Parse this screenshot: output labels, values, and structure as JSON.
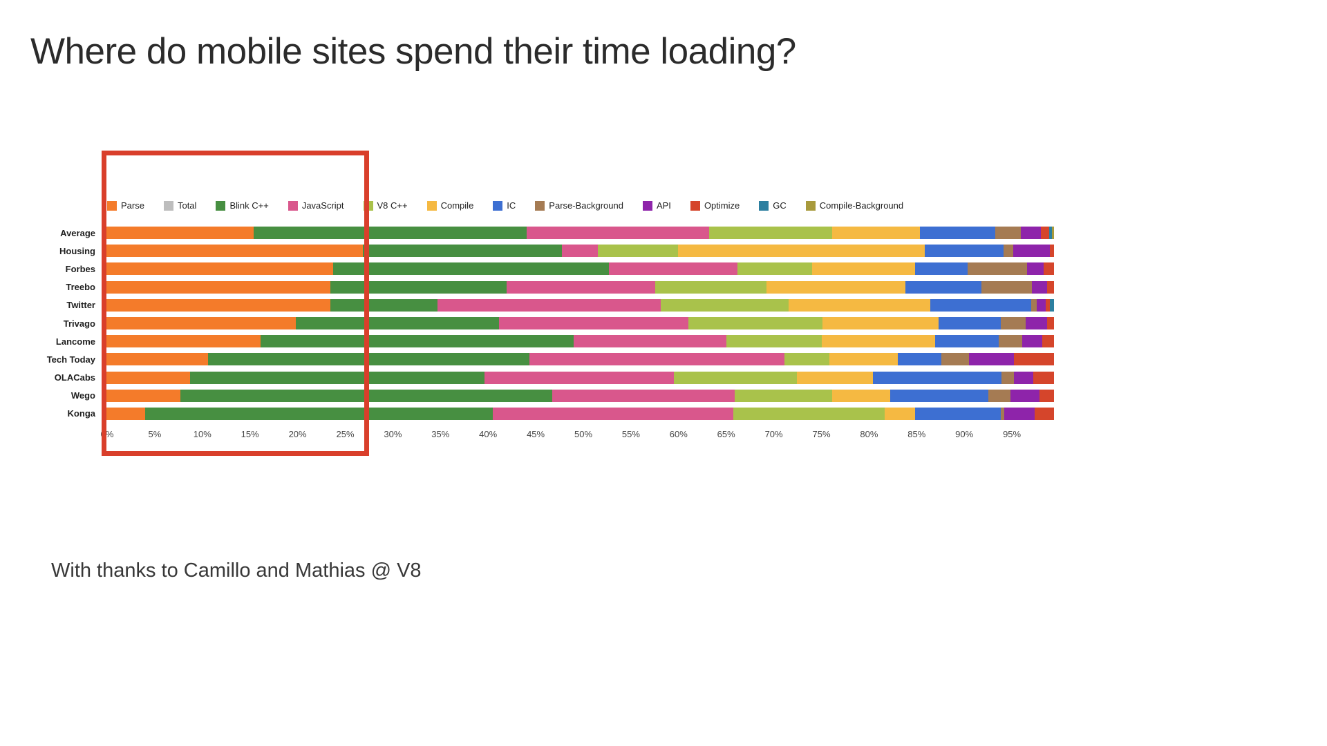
{
  "page": {
    "title": "Where do mobile sites spend their time loading?",
    "footer": "With thanks to Camillo and Mathias @ V8"
  },
  "colors": {
    "highlight_box": "#d93f2b",
    "background": "#ffffff"
  },
  "chart_data": {
    "type": "bar",
    "orientation": "horizontal",
    "stacked": true,
    "units": "percent",
    "legend_position": "top",
    "grid": false,
    "xlim": [
      0,
      100
    ],
    "xlabel_ticks": [
      "0%",
      "5%",
      "10%",
      "15%",
      "20%",
      "25%",
      "30%",
      "35%",
      "40%",
      "45%",
      "50%",
      "55%",
      "60%",
      "65%",
      "70%",
      "75%",
      "80%",
      "85%",
      "90%",
      "95%"
    ],
    "categories": [
      "Average",
      "Housing",
      "Forbes",
      "Treebo",
      "Twitter",
      "Trivago",
      "Lancome",
      "Tech Today",
      "OLACabs",
      "Wego",
      "Konga"
    ],
    "series": [
      {
        "name": "Parse",
        "color": "#f47b2a",
        "values": [
          16.0,
          27.4,
          24.3,
          24.0,
          24.0,
          20.4,
          16.7,
          11.2,
          9.3,
          8.3,
          4.6
        ]
      },
      {
        "name": "Total",
        "color": "#bdbdbd",
        "values": [
          0,
          0,
          0,
          0,
          0,
          0,
          0,
          0,
          0,
          0,
          0
        ]
      },
      {
        "name": "Blink C++",
        "color": "#478f41",
        "values": [
          28.6,
          20.9,
          29.0,
          18.5,
          11.3,
          21.3,
          32.9,
          33.7,
          30.9,
          39.0,
          36.5
        ]
      },
      {
        "name": "JavaScript",
        "color": "#d9578c",
        "values": [
          19.2,
          3.8,
          13.5,
          15.6,
          23.4,
          19.9,
          16.0,
          26.8,
          19.9,
          19.2,
          25.2
        ]
      },
      {
        "name": "V8 C++",
        "color": "#a9c24b",
        "values": [
          12.9,
          8.4,
          7.8,
          11.7,
          13.4,
          14.1,
          10.0,
          4.7,
          12.9,
          10.2,
          15.9
        ]
      },
      {
        "name": "Compile",
        "color": "#f5b942",
        "values": [
          9.2,
          25.9,
          10.8,
          14.6,
          14.9,
          12.2,
          11.9,
          7.2,
          8.0,
          6.1,
          3.2
        ]
      },
      {
        "name": "IC",
        "color": "#3d6fd2",
        "values": [
          7.9,
          8.3,
          5.5,
          8.0,
          10.6,
          6.5,
          6.7,
          4.6,
          13.5,
          10.3,
          9.0
        ]
      },
      {
        "name": "Parse-Background",
        "color": "#a57b53",
        "values": [
          2.7,
          1.0,
          6.3,
          5.3,
          0.6,
          2.6,
          2.5,
          2.9,
          1.3,
          2.3,
          0.4
        ]
      },
      {
        "name": "API",
        "color": "#8e24aa",
        "values": [
          2.1,
          3.9,
          1.7,
          1.6,
          0.9,
          2.3,
          2.1,
          4.7,
          2.0,
          3.1,
          3.2
        ]
      },
      {
        "name": "Optimize",
        "color": "#d5452b",
        "values": [
          0.9,
          0.4,
          1.1,
          0.7,
          0.5,
          0.7,
          1.2,
          4.2,
          2.2,
          1.5,
          2.0
        ]
      },
      {
        "name": "GC",
        "color": "#2c7fa0",
        "values": [
          0.3,
          0,
          0,
          0,
          0.4,
          0,
          0,
          0,
          0,
          0,
          0
        ]
      },
      {
        "name": "Compile-Background",
        "color": "#a89a3c",
        "values": [
          0.2,
          0,
          0,
          0,
          0,
          0,
          0,
          0,
          0,
          0,
          0
        ]
      }
    ],
    "highlight": {
      "from_pct": -0.6,
      "to_pct": 27.5
    }
  }
}
